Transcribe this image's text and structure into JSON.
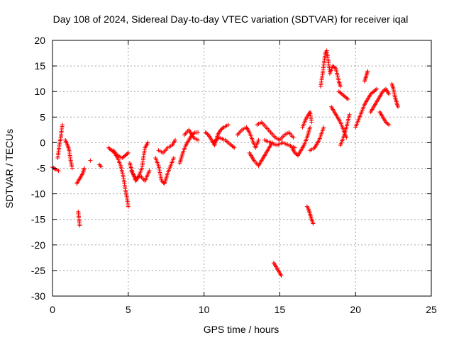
{
  "chart_data": {
    "type": "scatter",
    "title": "Day 108 of 2024, Sidereal Day-to-day VTEC variation (SDTVAR) for receiver iqal",
    "xlabel": "GPS time / hours",
    "ylabel": "SDTVAR / TECUs",
    "xlim": [
      0,
      25
    ],
    "ylim": [
      -30,
      20
    ],
    "xticks": [
      0,
      5,
      10,
      15,
      20,
      25
    ],
    "yticks": [
      -30,
      -25,
      -20,
      -15,
      -10,
      -5,
      0,
      5,
      10,
      15,
      20
    ],
    "grid": true,
    "marker": "plus",
    "color": "#ff0000",
    "series": [
      {
        "name": "SDTVAR",
        "segments": [
          {
            "x": [
              0.0,
              0.2,
              0.4
            ],
            "y": [
              -4.8,
              -5.2,
              -5.5
            ]
          },
          {
            "x": [
              0.35,
              0.45,
              0.55,
              0.6,
              0.65
            ],
            "y": [
              -3.0,
              -0.5,
              1.0,
              2.5,
              3.5
            ]
          },
          {
            "x": [
              0.85,
              1.0,
              1.1,
              1.2,
              1.3
            ],
            "y": [
              0.5,
              -0.5,
              -1.5,
              -3.5,
              -5.0
            ]
          },
          {
            "x": [
              1.6,
              1.7,
              1.8,
              2.0,
              2.1
            ],
            "y": [
              -8.0,
              -7.5,
              -7.0,
              -6.0,
              -5.0
            ]
          },
          {
            "x": [
              1.7,
              1.75,
              1.8
            ],
            "y": [
              -13.5,
              -15.0,
              -16.2
            ]
          },
          {
            "x": [
              2.5
            ],
            "y": [
              -3.5
            ]
          },
          {
            "x": [
              3.1,
              3.2
            ],
            "y": [
              -4.3,
              -4.7
            ]
          },
          {
            "x": [
              3.7,
              3.9,
              4.1,
              4.3,
              4.5,
              4.7,
              4.8,
              4.9,
              5.0
            ],
            "y": [
              -1.0,
              -1.5,
              -2.0,
              -3.0,
              -4.5,
              -7.0,
              -9.0,
              -10.5,
              -12.5
            ]
          },
          {
            "x": [
              4.0,
              4.3,
              4.6,
              4.8,
              5.0
            ],
            "y": [
              -1.5,
              -2.5,
              -3.0,
              -2.5,
              -2.0
            ]
          },
          {
            "x": [
              5.1,
              5.3,
              5.5,
              5.7,
              5.9,
              6.0,
              6.1,
              6.3
            ],
            "y": [
              -4.0,
              -6.0,
              -7.5,
              -6.5,
              -5.0,
              -3.0,
              -1.0,
              0.0
            ]
          },
          {
            "x": [
              5.2,
              5.5,
              5.8,
              6.1,
              6.4
            ],
            "y": [
              -5.5,
              -7.0,
              -6.5,
              -7.5,
              -5.5
            ]
          },
          {
            "x": [
              6.8,
              7.0,
              7.2,
              7.4,
              7.6,
              7.8,
              8.0
            ],
            "y": [
              -3.0,
              -4.5,
              -7.5,
              -8.0,
              -6.0,
              -4.5,
              -3.0
            ]
          },
          {
            "x": [
              7.0,
              7.3,
              7.6,
              7.9,
              8.1
            ],
            "y": [
              -1.5,
              -2.0,
              -1.0,
              -0.5,
              0.5
            ]
          },
          {
            "x": [
              8.4,
              8.6,
              8.8,
              9.0,
              9.2,
              9.4,
              9.6
            ],
            "y": [
              -4.0,
              -2.0,
              -0.5,
              0.5,
              1.5,
              2.0,
              2.0
            ]
          },
          {
            "x": [
              8.7,
              9.0,
              9.3,
              9.6
            ],
            "y": [
              1.5,
              2.5,
              1.0,
              0.5
            ]
          },
          {
            "x": [
              10.1,
              10.3,
              10.5,
              10.7,
              10.9,
              11.1,
              11.3,
              11.6
            ],
            "y": [
              2.0,
              1.5,
              0.5,
              -0.5,
              1.5,
              2.5,
              3.0,
              3.5
            ]
          },
          {
            "x": [
              10.6,
              11.0,
              11.4,
              11.8,
              12.0
            ],
            "y": [
              0.0,
              1.0,
              0.5,
              -0.5,
              -1.0
            ]
          },
          {
            "x": [
              12.2,
              12.5,
              12.8,
              13.0,
              13.2,
              13.4,
              13.6
            ],
            "y": [
              1.5,
              2.5,
              3.0,
              2.0,
              0.5,
              -1.0,
              0.5
            ]
          },
          {
            "x": [
              13.0,
              13.3,
              13.6,
              13.9,
              14.2,
              14.5
            ],
            "y": [
              -2.0,
              -3.5,
              -4.5,
              -3.0,
              -1.5,
              0.0
            ]
          },
          {
            "x": [
              13.5,
              13.8,
              14.1,
              14.4,
              14.7,
              15.0,
              15.3,
              15.6,
              15.9
            ],
            "y": [
              3.5,
              4.0,
              3.0,
              2.0,
              1.0,
              0.5,
              1.5,
              2.0,
              1.0
            ]
          },
          {
            "x": [
              14.0,
              14.4,
              14.8,
              15.2,
              15.6,
              16.0
            ],
            "y": [
              0.5,
              0.0,
              -0.5,
              0.0,
              -0.5,
              -1.0
            ]
          },
          {
            "x": [
              14.6,
              14.7,
              14.8,
              14.9,
              15.0,
              15.1
            ],
            "y": [
              -23.5,
              -24.0,
              -24.5,
              -25.0,
              -25.5,
              -26.0
            ]
          },
          {
            "x": [
              15.8,
              16.0,
              16.2,
              16.4,
              16.6,
              16.8,
              17.0
            ],
            "y": [
              -1.0,
              -2.0,
              -2.5,
              -1.5,
              -0.5,
              1.0,
              3.0
            ]
          },
          {
            "x": [
              16.5,
              16.7,
              16.9,
              17.0,
              17.1
            ],
            "y": [
              3.0,
              4.5,
              5.5,
              6.0,
              4.0
            ]
          },
          {
            "x": [
              17.0,
              17.3,
              17.6,
              17.9
            ],
            "y": [
              -1.5,
              -1.0,
              0.5,
              3.0
            ]
          },
          {
            "x": [
              16.8,
              16.9,
              17.0,
              17.1,
              17.2
            ],
            "y": [
              -12.5,
              -13.0,
              -14.0,
              -15.0,
              -15.8
            ]
          },
          {
            "x": [
              17.7,
              17.8,
              17.9,
              18.0,
              18.1,
              18.2,
              18.3
            ],
            "y": [
              11.0,
              13.0,
              15.0,
              17.5,
              18.0,
              16.0,
              14.0
            ]
          },
          {
            "x": [
              18.3,
              18.5,
              18.7,
              18.9,
              19.0
            ],
            "y": [
              13.5,
              15.0,
              14.5,
              12.0,
              11.0
            ]
          },
          {
            "x": [
              18.4,
              18.6,
              18.8,
              19.0,
              19.2,
              19.4
            ],
            "y": [
              7.0,
              6.0,
              5.0,
              4.0,
              2.5,
              1.0
            ]
          },
          {
            "x": [
              18.9,
              19.1,
              19.3,
              19.5
            ],
            "y": [
              10.0,
              9.5,
              9.0,
              8.5
            ]
          },
          {
            "x": [
              19.0,
              19.2,
              19.4,
              19.6
            ],
            "y": [
              -0.5,
              1.0,
              3.0,
              5.5
            ]
          },
          {
            "x": [
              20.0,
              20.2,
              20.4,
              20.6,
              20.8,
              21.0,
              21.2,
              21.4
            ],
            "y": [
              3.0,
              4.5,
              6.0,
              7.5,
              8.5,
              9.5,
              10.0,
              10.5
            ]
          },
          {
            "x": [
              20.6,
              20.7,
              20.8
            ],
            "y": [
              12.0,
              13.0,
              14.0
            ]
          },
          {
            "x": [
              21.0,
              21.3,
              21.6,
              21.8,
              22.0,
              22.2
            ],
            "y": [
              6.0,
              7.5,
              9.0,
              10.0,
              10.5,
              9.5
            ]
          },
          {
            "x": [
              21.6,
              21.8,
              22.0,
              22.2
            ],
            "y": [
              6.0,
              5.0,
              4.0,
              3.5
            ]
          },
          {
            "x": [
              22.4,
              22.5,
              22.6,
              22.7,
              22.8
            ],
            "y": [
              11.5,
              10.5,
              9.0,
              8.0,
              7.0
            ]
          }
        ]
      }
    ]
  }
}
